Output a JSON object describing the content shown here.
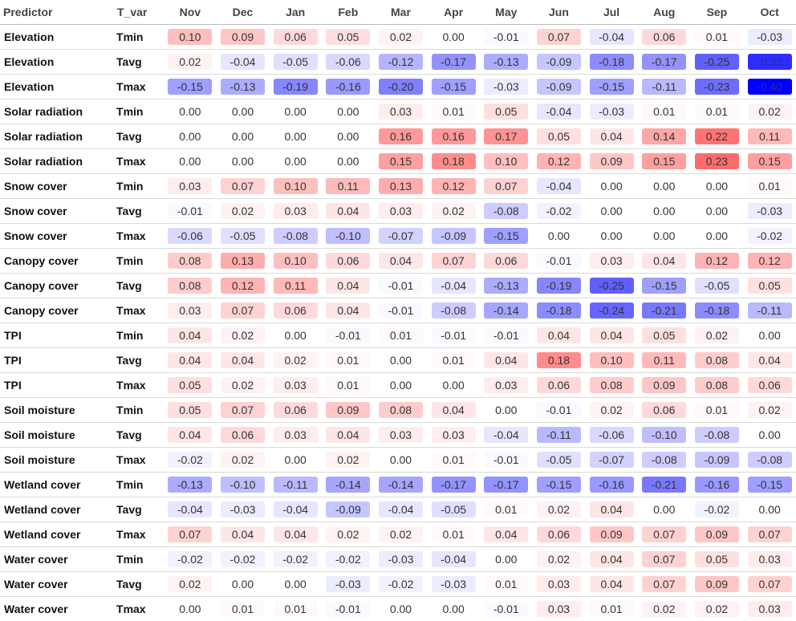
{
  "chart_data": {
    "type": "table",
    "columns": [
      "Predictor",
      "T_var",
      "Nov",
      "Dec",
      "Jan",
      "Feb",
      "Mar",
      "Apr",
      "May",
      "Jun",
      "Jul",
      "Aug",
      "Sep",
      "Oct"
    ],
    "months": [
      "Nov",
      "Dec",
      "Jan",
      "Feb",
      "Mar",
      "Apr",
      "May",
      "Jun",
      "Jul",
      "Aug",
      "Sep",
      "Oct"
    ],
    "color_scale": {
      "negative": "#0000ff",
      "positive": "#ff0000",
      "neutral": "#ffffff",
      "max_abs": 0.4
    },
    "rows": [
      {
        "predictor": "Elevation",
        "t_var": "Tmin",
        "values": [
          "0.10",
          "0.09",
          "0.06",
          "0.05",
          "0.02",
          "0.00",
          "-0.01",
          "0.07",
          "-0.04",
          "0.06",
          "0.01",
          "-0.03"
        ]
      },
      {
        "predictor": "Elevation",
        "t_var": "Tavg",
        "values": [
          "0.02",
          "-0.04",
          "-0.05",
          "-0.06",
          "-0.12",
          "-0.17",
          "-0.13",
          "-0.09",
          "-0.18",
          "-0.17",
          "-0.25",
          "-0.33"
        ]
      },
      {
        "predictor": "Elevation",
        "t_var": "Tmax",
        "values": [
          "-0.15",
          "-0.13",
          "-0.19",
          "-0.16",
          "-0.20",
          "-0.15",
          "-0.03",
          "-0.09",
          "-0.15",
          "-0.11",
          "-0.23",
          "-0.40"
        ]
      },
      {
        "predictor": "Solar radiation",
        "t_var": "Tmin",
        "values": [
          "0.00",
          "0.00",
          "0.00",
          "0.00",
          "0.03",
          "0.01",
          "0.05",
          "-0.04",
          "-0.03",
          "0.01",
          "0.01",
          "0.02"
        ]
      },
      {
        "predictor": "Solar radiation",
        "t_var": "Tavg",
        "values": [
          "0.00",
          "0.00",
          "0.00",
          "0.00",
          "0.16",
          "0.16",
          "0.17",
          "0.05",
          "0.04",
          "0.14",
          "0.22",
          "0.11"
        ]
      },
      {
        "predictor": "Solar radiation",
        "t_var": "Tmax",
        "values": [
          "0.00",
          "0.00",
          "0.00",
          "0.00",
          "0.15",
          "0.18",
          "0.10",
          "0.12",
          "0.09",
          "0.15",
          "0.23",
          "0.15"
        ]
      },
      {
        "predictor": "Snow cover",
        "t_var": "Tmin",
        "values": [
          "0.03",
          "0.07",
          "0.10",
          "0.11",
          "0.13",
          "0.12",
          "0.07",
          "-0.04",
          "0.00",
          "0.00",
          "0.00",
          "0.01"
        ]
      },
      {
        "predictor": "Snow cover",
        "t_var": "Tavg",
        "values": [
          "-0.01",
          "0.02",
          "0.03",
          "0.04",
          "0.03",
          "0.02",
          "-0.08",
          "-0.02",
          "0.00",
          "0.00",
          "0.00",
          "-0.03"
        ]
      },
      {
        "predictor": "Snow cover",
        "t_var": "Tmax",
        "values": [
          "-0.06",
          "-0.05",
          "-0.08",
          "-0.10",
          "-0.07",
          "-0.09",
          "-0.15",
          "0.00",
          "0.00",
          "0.00",
          "0.00",
          "-0.02"
        ]
      },
      {
        "predictor": "Canopy cover",
        "t_var": "Tmin",
        "values": [
          "0.08",
          "0.13",
          "0.10",
          "0.06",
          "0.04",
          "0.07",
          "0.06",
          "-0.01",
          "0.03",
          "0.04",
          "0.12",
          "0.12"
        ]
      },
      {
        "predictor": "Canopy cover",
        "t_var": "Tavg",
        "values": [
          "0.08",
          "0.12",
          "0.11",
          "0.04",
          "-0.01",
          "-0.04",
          "-0.13",
          "-0.19",
          "-0.25",
          "-0.15",
          "-0.05",
          "0.05"
        ]
      },
      {
        "predictor": "Canopy cover",
        "t_var": "Tmax",
        "values": [
          "0.03",
          "0.07",
          "0.06",
          "0.04",
          "-0.01",
          "-0.08",
          "-0.14",
          "-0.18",
          "-0.24",
          "-0.21",
          "-0.18",
          "-0.11"
        ]
      },
      {
        "predictor": "TPI",
        "t_var": "Tmin",
        "values": [
          "0.04",
          "0.02",
          "0.00",
          "-0.01",
          "0.01",
          "-0.01",
          "-0.01",
          "0.04",
          "0.04",
          "0.05",
          "0.02",
          "0.00"
        ]
      },
      {
        "predictor": "TPI",
        "t_var": "Tavg",
        "values": [
          "0.04",
          "0.04",
          "0.02",
          "0.01",
          "0.00",
          "0.01",
          "0.04",
          "0.18",
          "0.10",
          "0.11",
          "0.08",
          "0.04"
        ]
      },
      {
        "predictor": "TPI",
        "t_var": "Tmax",
        "values": [
          "0.05",
          "0.02",
          "0.03",
          "0.01",
          "0.00",
          "0.00",
          "0.03",
          "0.06",
          "0.08",
          "0.09",
          "0.08",
          "0.06"
        ]
      },
      {
        "predictor": "Soil moisture",
        "t_var": "Tmin",
        "values": [
          "0.05",
          "0.07",
          "0.06",
          "0.09",
          "0.08",
          "0.04",
          "0.00",
          "-0.01",
          "0.02",
          "0.06",
          "0.01",
          "0.02"
        ]
      },
      {
        "predictor": "Soil moisture",
        "t_var": "Tavg",
        "values": [
          "0.04",
          "0.06",
          "0.03",
          "0.04",
          "0.03",
          "0.03",
          "-0.04",
          "-0.11",
          "-0.06",
          "-0.10",
          "-0.08",
          "0.00"
        ]
      },
      {
        "predictor": "Soil moisture",
        "t_var": "Tmax",
        "values": [
          "-0.02",
          "0.02",
          "0.00",
          "0.02",
          "0.00",
          "0.01",
          "-0.01",
          "-0.05",
          "-0.07",
          "-0.08",
          "-0.09",
          "-0.08"
        ]
      },
      {
        "predictor": "Wetland cover",
        "t_var": "Tmin",
        "values": [
          "-0.13",
          "-0.10",
          "-0.11",
          "-0.14",
          "-0.14",
          "-0.17",
          "-0.17",
          "-0.15",
          "-0.16",
          "-0.21",
          "-0.16",
          "-0.15"
        ]
      },
      {
        "predictor": "Wetland cover",
        "t_var": "Tavg",
        "values": [
          "-0.04",
          "-0.03",
          "-0.04",
          "-0.09",
          "-0.04",
          "-0.05",
          "0.01",
          "0.02",
          "0.04",
          "0.00",
          "-0.02",
          "0.00"
        ]
      },
      {
        "predictor": "Wetland cover",
        "t_var": "Tmax",
        "values": [
          "0.07",
          "0.04",
          "0.04",
          "0.02",
          "0.02",
          "0.01",
          "0.04",
          "0.06",
          "0.09",
          "0.07",
          "0.09",
          "0.07"
        ]
      },
      {
        "predictor": "Water cover",
        "t_var": "Tmin",
        "values": [
          "-0.02",
          "-0.02",
          "-0.02",
          "-0.02",
          "-0.03",
          "-0.04",
          "0.00",
          "0.02",
          "0.04",
          "0.07",
          "0.05",
          "0.03"
        ]
      },
      {
        "predictor": "Water cover",
        "t_var": "Tavg",
        "values": [
          "0.02",
          "0.00",
          "0.00",
          "-0.03",
          "-0.02",
          "-0.03",
          "0.01",
          "0.03",
          "0.04",
          "0.07",
          "0.09",
          "0.07"
        ]
      },
      {
        "predictor": "Water cover",
        "t_var": "Tmax",
        "values": [
          "0.00",
          "0.01",
          "0.01",
          "-0.01",
          "0.00",
          "0.00",
          "-0.01",
          "0.03",
          "0.01",
          "0.02",
          "0.02",
          "0.03"
        ]
      }
    ]
  }
}
